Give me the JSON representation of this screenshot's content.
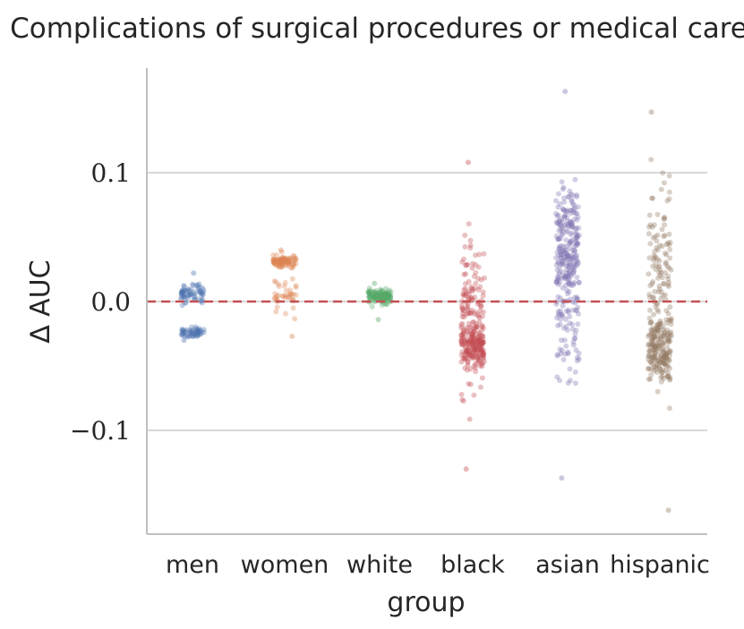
{
  "chart_data": {
    "type": "scatter",
    "subtype": "strip",
    "title": "Complications of surgical procedures or medical care",
    "xlabel": "group",
    "ylabel": "∆ AUC",
    "categories": [
      "men",
      "women",
      "white",
      "black",
      "asian",
      "hispanic"
    ],
    "ylim": [
      -0.18,
      0.18
    ],
    "yticks": [
      -0.1,
      0.0,
      0.1
    ],
    "ytick_labels": [
      "−0.1",
      "0.0",
      "0.1"
    ],
    "grid": "horizontal",
    "reference_line": {
      "y": 0.0,
      "style": "dashed",
      "color": "#c44e52"
    },
    "series": [
      {
        "name": "men",
        "color": "#4c72b0",
        "n": 120,
        "clusters": [
          {
            "center": 0.005,
            "spread": 0.006,
            "weight": 0.55
          },
          {
            "center": -0.024,
            "spread": 0.003,
            "weight": 0.45
          }
        ],
        "min": -0.03,
        "max": 0.022
      },
      {
        "name": "women",
        "color": "#dd8452",
        "n": 130,
        "clusters": [
          {
            "center": 0.031,
            "spread": 0.004,
            "weight": 0.6
          },
          {
            "center": 0.005,
            "spread": 0.009,
            "weight": 0.4
          }
        ],
        "min": -0.027,
        "max": 0.04
      },
      {
        "name": "white",
        "color": "#55a868",
        "n": 120,
        "clusters": [
          {
            "center": 0.004,
            "spread": 0.004,
            "weight": 1.0
          }
        ],
        "min": -0.014,
        "max": 0.014
      },
      {
        "name": "black",
        "color": "#c44e52",
        "n": 300,
        "clusters": [
          {
            "center": -0.036,
            "spread": 0.012,
            "weight": 0.5
          },
          {
            "center": -0.01,
            "spread": 0.045,
            "weight": 0.5
          }
        ],
        "min": -0.13,
        "max": 0.108
      },
      {
        "name": "asian",
        "color": "#8172b3",
        "n": 300,
        "clusters": [
          {
            "center": 0.045,
            "spread": 0.03,
            "weight": 0.65
          },
          {
            "center": 0.0,
            "spread": 0.055,
            "weight": 0.35
          }
        ],
        "min": -0.137,
        "max": 0.163
      },
      {
        "name": "hispanic",
        "color": "#937860",
        "n": 300,
        "clusters": [
          {
            "center": -0.038,
            "spread": 0.018,
            "weight": 0.6
          },
          {
            "center": 0.02,
            "spread": 0.05,
            "weight": 0.4
          }
        ],
        "min": -0.162,
        "max": 0.147
      }
    ]
  }
}
